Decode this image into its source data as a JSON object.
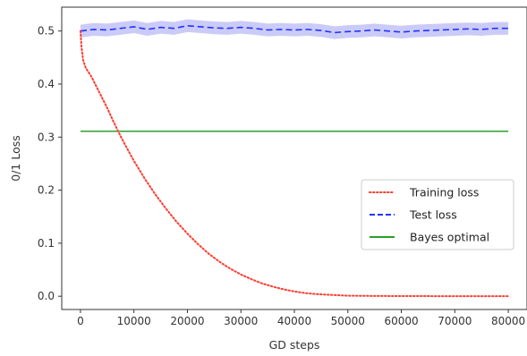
{
  "chart_data": {
    "type": "line",
    "title": "",
    "xlabel": "GD steps",
    "ylabel": "0/1 Loss",
    "xlim": [
      -3500,
      83500
    ],
    "ylim": [
      -0.025,
      0.545
    ],
    "xticks": [
      0,
      10000,
      20000,
      30000,
      40000,
      50000,
      60000,
      70000,
      80000
    ],
    "xtick_labels": [
      "0",
      "10000",
      "20000",
      "30000",
      "40000",
      "50000",
      "60000",
      "70000",
      "80000"
    ],
    "yticks": [
      0.0,
      0.1,
      0.2,
      0.3,
      0.4,
      0.5
    ],
    "ytick_labels": [
      "0.0",
      "0.1",
      "0.2",
      "0.3",
      "0.4",
      "0.5"
    ],
    "grid": false,
    "legend_position": "center-right",
    "series": [
      {
        "name": "Training loss",
        "style": "dotted",
        "color": "#ff3b30",
        "x": [
          0,
          200,
          500,
          1000,
          2000,
          3000,
          4000,
          5000,
          6000,
          7000,
          8000,
          10000,
          12000,
          14000,
          16000,
          18000,
          20000,
          22000,
          24000,
          26000,
          28000,
          30000,
          32000,
          34000,
          36000,
          38000,
          40000,
          42000,
          44000,
          46000,
          48000,
          50000,
          55000,
          60000,
          65000,
          70000,
          75000,
          80000
        ],
        "y": [
          0.5,
          0.47,
          0.445,
          0.43,
          0.415,
          0.395,
          0.375,
          0.355,
          0.333,
          0.312,
          0.292,
          0.255,
          0.222,
          0.192,
          0.165,
          0.14,
          0.118,
          0.098,
          0.08,
          0.065,
          0.052,
          0.041,
          0.032,
          0.024,
          0.018,
          0.013,
          0.009,
          0.006,
          0.004,
          0.003,
          0.002,
          0.001,
          0.0005,
          0.0003,
          0.0002,
          0.0001,
          0.0001,
          0.0001
        ]
      },
      {
        "name": "Test loss",
        "style": "dashed",
        "color": "#2433ff",
        "band_color": "#b8b9f5",
        "x": [
          0,
          2500,
          5000,
          7500,
          10000,
          12500,
          15000,
          17500,
          20000,
          22500,
          25000,
          27500,
          30000,
          32500,
          35000,
          37500,
          40000,
          42500,
          45000,
          47500,
          50000,
          52500,
          55000,
          57500,
          60000,
          62500,
          65000,
          67500,
          70000,
          72500,
          75000,
          77500,
          80000
        ],
        "y": [
          0.5,
          0.503,
          0.502,
          0.505,
          0.508,
          0.503,
          0.507,
          0.505,
          0.51,
          0.508,
          0.506,
          0.505,
          0.507,
          0.505,
          0.502,
          0.503,
          0.502,
          0.503,
          0.501,
          0.497,
          0.499,
          0.5,
          0.502,
          0.5,
          0.498,
          0.5,
          0.501,
          0.502,
          0.503,
          0.504,
          0.503,
          0.505,
          0.505
        ],
        "band_half_width": 0.012
      },
      {
        "name": "Bayes optimal",
        "style": "solid",
        "color": "#2ca02c",
        "x": [
          0,
          80000
        ],
        "y": [
          0.311,
          0.311
        ]
      }
    ]
  }
}
